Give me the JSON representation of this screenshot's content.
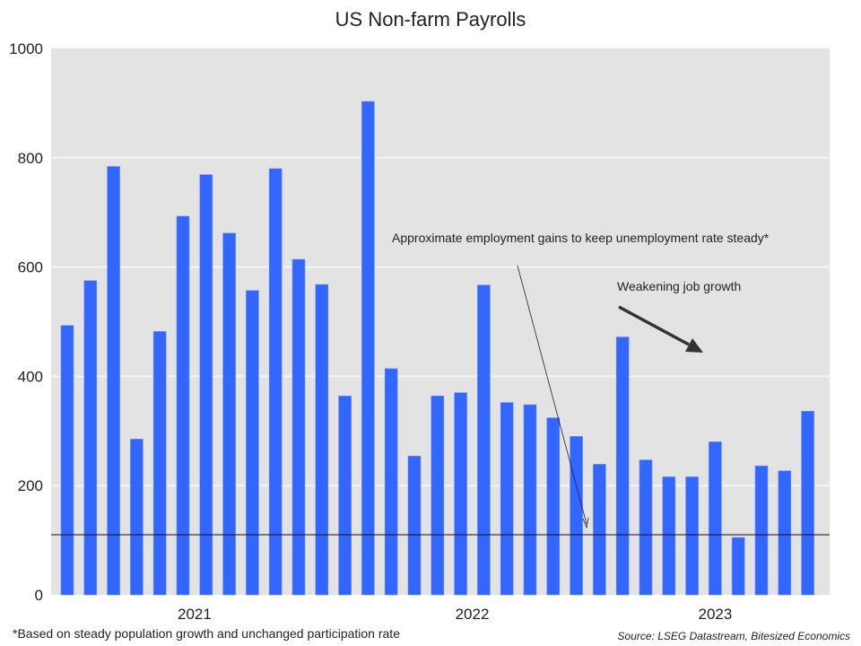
{
  "chart_data": {
    "type": "bar",
    "title": "US Non-farm Payrolls",
    "xlabel": "",
    "ylabel": "",
    "ylim": [
      0,
      1000
    ],
    "yticks": [
      0,
      200,
      400,
      600,
      800,
      1000
    ],
    "xtick_labels": [
      {
        "label": "2021",
        "index": 5.5
      },
      {
        "label": "2022",
        "index": 17.5
      },
      {
        "label": "2023",
        "index": 28
      }
    ],
    "values": [
      493,
      575,
      784,
      285,
      482,
      693,
      769,
      662,
      557,
      780,
      614,
      568,
      364,
      903,
      414,
      254,
      364,
      370,
      567,
      352,
      348,
      324,
      290,
      239,
      472,
      247,
      216,
      216,
      280,
      105,
      236,
      227,
      336
    ],
    "reference_line": {
      "value": 110,
      "label": "Approximate employment gains to keep unemployment rate steady*"
    },
    "annotation_trend": "Weakening job growth",
    "grid": true,
    "bar_color": "#3366ff",
    "background_color": "#e3e3e3",
    "footnote": "*Based on steady population growth and unchanged participation rate",
    "source": "Source: LSEG Datastream, Bitesized Economics"
  }
}
